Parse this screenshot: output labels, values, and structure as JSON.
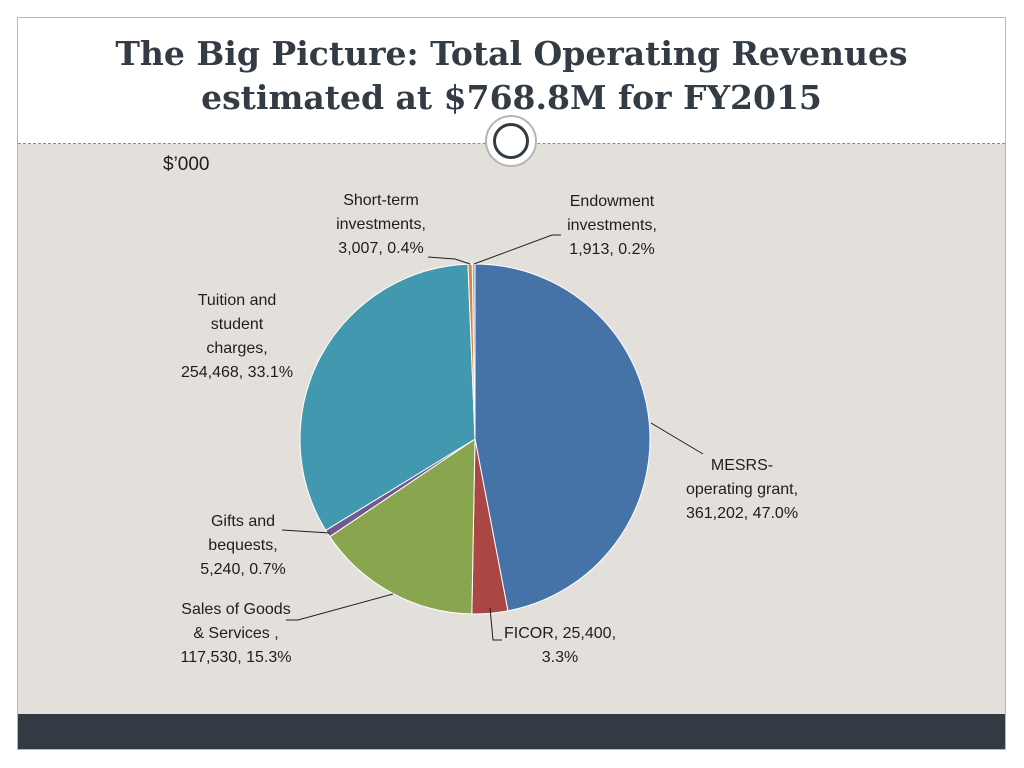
{
  "title_lines": [
    "The Big Picture:  Total Operating Revenues",
    "estimated at $768.8M for FY2015"
  ],
  "unit_label": "$’000",
  "colors": {
    "header_text": "#333b44",
    "body_bg": "#e3e0dc",
    "footer_bar": "#323b44"
  },
  "chart_data": {
    "type": "pie",
    "title": "",
    "slices": [
      {
        "name": "MESRS-operating grant",
        "value": 361202,
        "percent": "47.0%",
        "color": "#4572a7",
        "label_lines": [
          "MESRS-",
          "operating grant,",
          "361,202, 47.0%"
        ]
      },
      {
        "name": "FICOR",
        "value": 25400,
        "percent": "3.3%",
        "color": "#aa4643",
        "label_lines": [
          "FICOR, 25,400,",
          "3.3%"
        ]
      },
      {
        "name": "Sales of Goods & Services",
        "value": 117530,
        "percent": "15.3%",
        "color": "#89a54e",
        "label_lines": [
          "Sales of Goods",
          "& Services ,",
          "117,530, 15.3%"
        ]
      },
      {
        "name": "Gifts and bequests",
        "value": 5240,
        "percent": "0.7%",
        "color": "#71588f",
        "label_lines": [
          "Gifts and",
          "bequests,",
          "5,240, 0.7%"
        ]
      },
      {
        "name": "Tuition and student charges",
        "value": 254468,
        "percent": "33.1%",
        "color": "#4198af",
        "label_lines": [
          "Tuition and",
          "student",
          "charges,",
          "254,468, 33.1%"
        ]
      },
      {
        "name": "Short-term investments",
        "value": 3007,
        "percent": "0.4%",
        "color": "#db843d",
        "label_lines": [
          "Short-term",
          "investments,",
          "3,007, 0.4%"
        ]
      },
      {
        "name": "Endowment investments",
        "value": 1913,
        "percent": "0.2%",
        "color": "#93a9cf",
        "label_lines": [
          "Endowment",
          "investments,",
          "1,913, 0.2%"
        ]
      }
    ]
  }
}
